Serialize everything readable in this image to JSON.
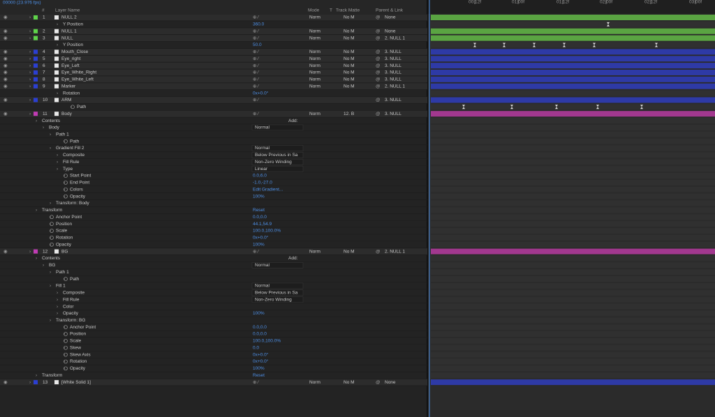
{
  "header": {
    "timecode": "00000 (23.976 fps)",
    "columns": {
      "number": "#",
      "layer_name": "Layer Name",
      "mode": "Mode",
      "t": "T",
      "track_matte": "Track Matte",
      "parent": "Parent & Link"
    },
    "ruler": [
      "00:12f",
      "01:00f",
      "01:12f",
      "02:00f",
      "02:12f",
      "03:00f"
    ]
  },
  "rows": [
    {
      "num": "1",
      "name": "NULL 2",
      "color": "#5fd34a",
      "bar": "#5aa442",
      "mode": "Norm",
      "matte": "No M",
      "parent": "None"
    },
    {
      "name": "Y Position",
      "depth": 4,
      "value": "360.0"
    },
    {
      "num": "2",
      "name": "NULL 1",
      "color": "#5fd34a",
      "bar": "#5aa442",
      "mode": "Norm",
      "matte": "No M",
      "parent": "None"
    },
    {
      "num": "3",
      "name": "NULL",
      "color": "#5fd34a",
      "bar": "#5aa442",
      "mode": "Norm",
      "matte": "No M",
      "parent": "2. NULL 1"
    },
    {
      "name": "Y Position",
      "depth": 4,
      "value": "50.0"
    },
    {
      "num": "4",
      "name": "Mouth_Close",
      "color": "#2b3fd1",
      "bar": "#2e3aa6",
      "mode": "Norm",
      "matte": "No M",
      "parent": "3. NULL"
    },
    {
      "num": "5",
      "name": "Eye_right",
      "color": "#2b3fd1",
      "bar": "#2e3aa6",
      "mode": "Norm",
      "matte": "No M",
      "parent": "3. NULL"
    },
    {
      "num": "6",
      "name": "Eye_Left",
      "color": "#2b3fd1",
      "bar": "#2e3aa6",
      "mode": "Norm",
      "matte": "No M",
      "parent": "3. NULL"
    },
    {
      "num": "7",
      "name": "Eye_White_Right",
      "color": "#2b3fd1",
      "bar": "#2e3aa6",
      "mode": "Norm",
      "matte": "No M",
      "parent": "3. NULL"
    },
    {
      "num": "8",
      "name": "Eye_White_Left",
      "color": "#2b3fd1",
      "bar": "#2e3aa6",
      "mode": "Norm",
      "matte": "No M",
      "parent": "3. NULL"
    },
    {
      "num": "9",
      "name": "Marker",
      "color": "#2b3fd1",
      "bar": "#2e3aa6",
      "mode": "Norm",
      "matte": "No M",
      "parent": "2. NULL 1"
    },
    {
      "name": "Rotation",
      "depth": 4,
      "value": "0x+0.0°"
    },
    {
      "num": "10",
      "name": "ARM",
      "color": "#2b3fd1",
      "bar": "#2e3aa6",
      "parent": "3. NULL"
    },
    {
      "name": "Path",
      "depth": 6,
      "stopwatch": true
    },
    {
      "num": "11",
      "name": "Body",
      "color": "#c03cb4",
      "bar": "#a2388f",
      "mode": "Norm",
      "matte": "12. B",
      "parent": "3. NULL"
    },
    {
      "name": "Contents",
      "depth": 1,
      "add": "Add:"
    },
    {
      "name": "Body",
      "depth": 2,
      "menu": "Normal"
    },
    {
      "name": "Path 1",
      "depth": 3
    },
    {
      "name": "Path",
      "depth": 5,
      "stopwatch": true
    },
    {
      "name": "Gradient Fill 2",
      "depth": 3,
      "menu": "Normal"
    },
    {
      "name": "Composite",
      "depth": 4,
      "menu": "Below Previous in Sa"
    },
    {
      "name": "Fill Rule",
      "depth": 4,
      "menu": "Non-Zero Winding"
    },
    {
      "name": "Type",
      "depth": 4,
      "menu": "Linear"
    },
    {
      "name": "Start Point",
      "depth": 5,
      "stopwatch": true,
      "value": "0.0,6.0"
    },
    {
      "name": "End Point",
      "depth": 5,
      "stopwatch": true,
      "value": "-1.0,-27.0"
    },
    {
      "name": "Colors",
      "depth": 5,
      "stopwatch": true,
      "value": "Edit Gradient..."
    },
    {
      "name": "Opacity",
      "depth": 5,
      "stopwatch": true,
      "value": "100%"
    },
    {
      "name": "Transform: Body",
      "depth": 3
    },
    {
      "name": "Transform",
      "depth": 1,
      "value": "Reset"
    },
    {
      "name": "Anchor Point",
      "depth": 3,
      "stopwatch": true,
      "value": "0.0,0.0"
    },
    {
      "name": "Position",
      "depth": 3,
      "stopwatch": true,
      "value": "44.1,54.9"
    },
    {
      "name": "Scale",
      "depth": 3,
      "stopwatch": true,
      "value": "100.0,100.0%"
    },
    {
      "name": "Rotation",
      "depth": 3,
      "stopwatch": true,
      "value": "0x+0.0°"
    },
    {
      "name": "Opacity",
      "depth": 3,
      "stopwatch": true,
      "value": "100%"
    },
    {
      "num": "12",
      "name": "BG",
      "color": "#c03cb4",
      "bar": "#a2388f",
      "mode": "Norm",
      "matte": "No M",
      "parent": "2. NULL 1"
    },
    {
      "name": "Contents",
      "depth": 1,
      "add": "Add:"
    },
    {
      "name": "BG",
      "depth": 2,
      "menu": "Normal"
    },
    {
      "name": "Path 1",
      "depth": 3
    },
    {
      "name": "Path",
      "depth": 5,
      "stopwatch": true
    },
    {
      "name": "Fill 1",
      "depth": 3,
      "menu": "Normal"
    },
    {
      "name": "Composite",
      "depth": 4,
      "menu": "Below Previous in Sa"
    },
    {
      "name": "Fill Rule",
      "depth": 4,
      "menu": "Non-Zero Winding"
    },
    {
      "name": "Color",
      "depth": 4
    },
    {
      "name": "Opacity",
      "depth": 4,
      "value": "100%"
    },
    {
      "name": "Transform: BG",
      "depth": 3
    },
    {
      "name": "Anchor Point",
      "depth": 5,
      "stopwatch": true,
      "value": "0.0,0.0"
    },
    {
      "name": "Position",
      "depth": 5,
      "stopwatch": true,
      "value": "0.0,0.0"
    },
    {
      "name": "Scale",
      "depth": 5,
      "stopwatch": true,
      "value": "100.0,100.0%"
    },
    {
      "name": "Skew",
      "depth": 5,
      "stopwatch": true,
      "value": "0.0"
    },
    {
      "name": "Skew Axis",
      "depth": 5,
      "stopwatch": true,
      "value": "0x+0.0°"
    },
    {
      "name": "Rotation",
      "depth": 5,
      "stopwatch": true,
      "value": "0x+0.0°"
    },
    {
      "name": "Opacity",
      "depth": 5,
      "stopwatch": true,
      "value": "100%"
    },
    {
      "name": "Transform",
      "depth": 1,
      "value": "Reset"
    },
    {
      "num": "13",
      "name": "[White Solid 1]",
      "color": "#2b3fd1",
      "bar": "#2e3aa6",
      "mode": "Norm",
      "matte": "No M",
      "parent": "None"
    }
  ]
}
